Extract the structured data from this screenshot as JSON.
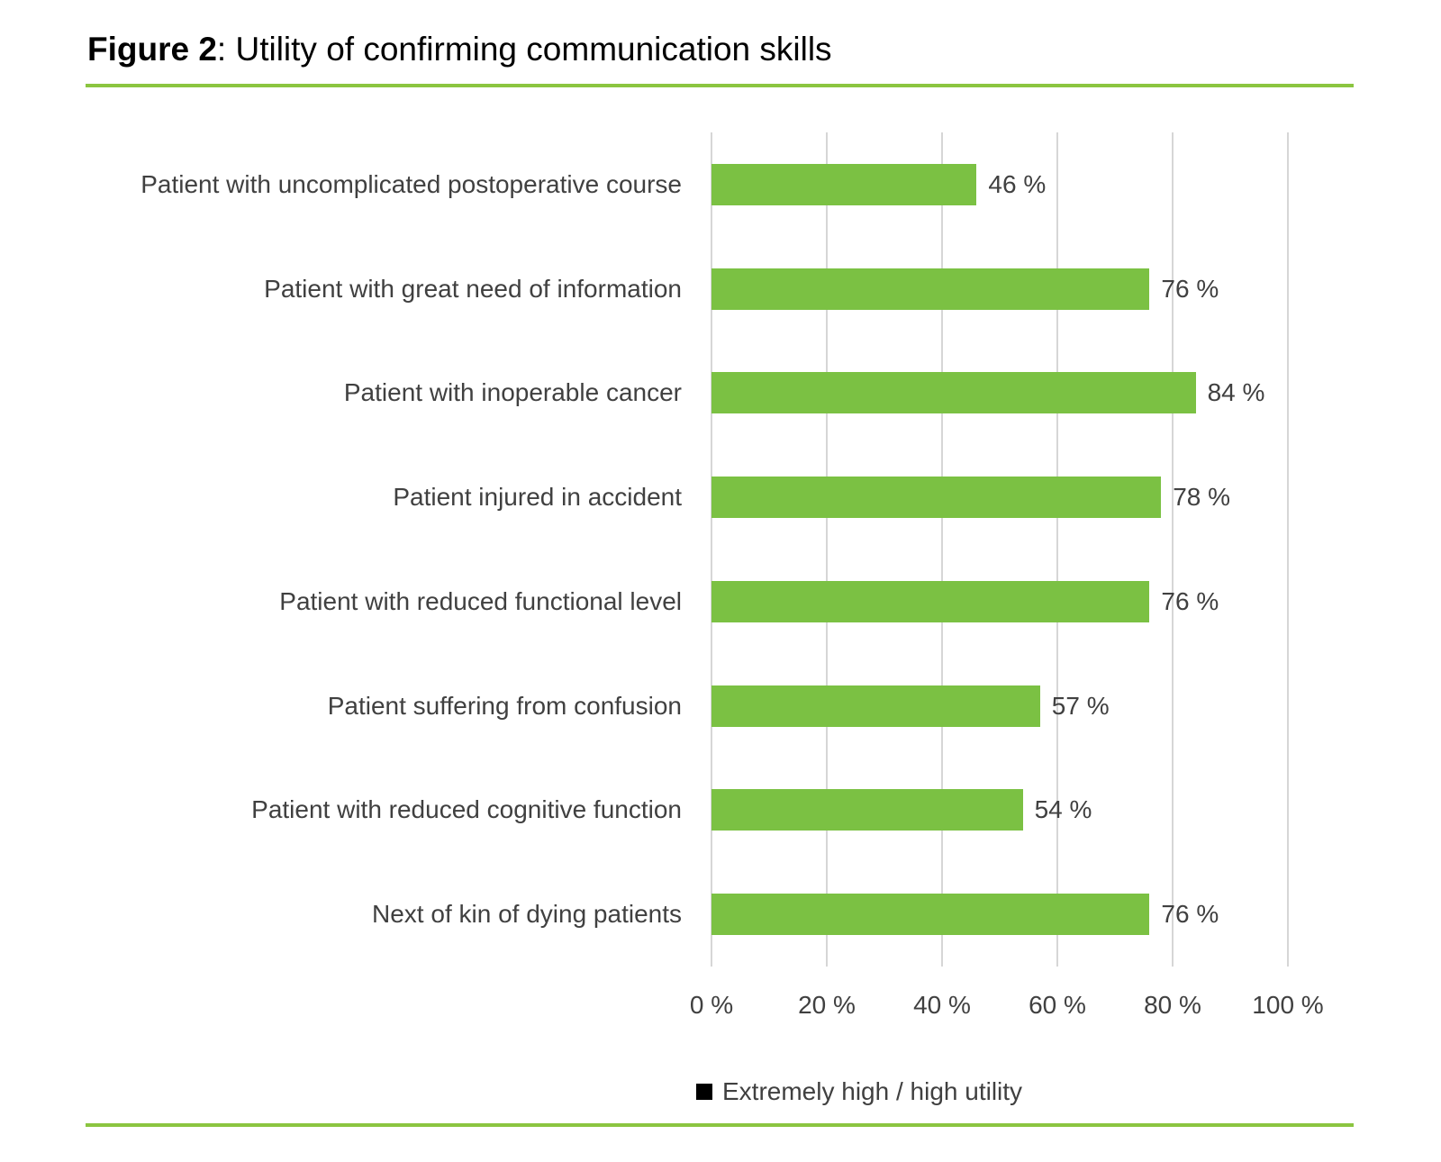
{
  "figure": {
    "title_prefix": "Figure 2",
    "title_rest": ": Utility of confirming communication skills"
  },
  "colors": {
    "bar_green": "#7BC143",
    "rule_green": "#8BC540",
    "gridline_gray": "#D6D6D6",
    "chart_text": "#404040",
    "legend_marker": "#000000"
  },
  "chart_data": {
    "type": "bar",
    "orientation": "horizontal",
    "title": "Figure 2: Utility of confirming communication skills",
    "categories": [
      "Patient with uncomplicated postoperative course",
      "Patient with great need of information",
      "Patient with inoperable cancer",
      "Patient injured in accident",
      "Patient with reduced functional level",
      "Patient suffering from confusion",
      "Patient with reduced cognitive function",
      "Next of kin of dying patients"
    ],
    "values": [
      46,
      76,
      84,
      78,
      76,
      57,
      54,
      76
    ],
    "value_label_suffix": " %",
    "x_ticks": [
      0,
      20,
      40,
      60,
      80,
      100
    ],
    "x_tick_labels": [
      "0 %",
      "20 %",
      "40 %",
      "60 %",
      "80 %",
      "100 %"
    ],
    "xlim": [
      0,
      100
    ],
    "grid": "vertical-only",
    "legend": {
      "position": "bottom-center",
      "entries": [
        "Extremely high / high utility"
      ]
    }
  }
}
